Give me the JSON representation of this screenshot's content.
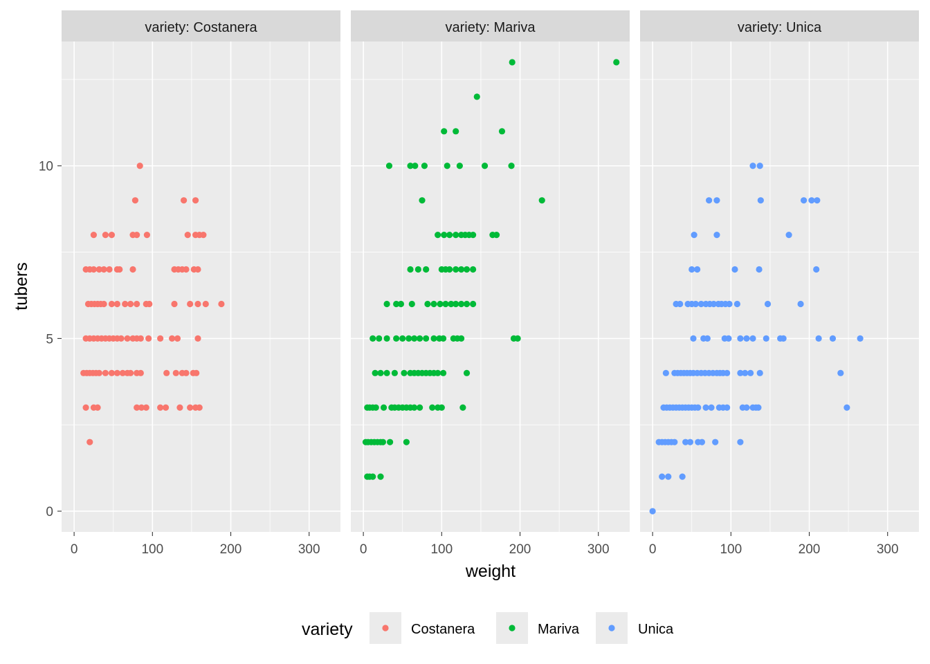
{
  "chart_data": {
    "type": "scatter",
    "facet_strip_prefix": "variety: ",
    "xlabel": "weight",
    "ylabel": "tubers",
    "xlim": [
      -16,
      340
    ],
    "ylim": [
      -0.6,
      13.6
    ],
    "x_ticks": [
      0,
      100,
      200,
      300
    ],
    "y_ticks": [
      0,
      5,
      10
    ],
    "grid": true,
    "legend": {
      "title": "variety",
      "position": "bottom"
    },
    "series": [
      {
        "name": "Costanera",
        "color": "#F8766D",
        "points": [
          [
            84,
            10
          ],
          [
            78,
            9
          ],
          [
            140,
            9
          ],
          [
            155,
            9
          ],
          [
            25,
            8
          ],
          [
            40,
            8
          ],
          [
            48,
            8
          ],
          [
            75,
            8
          ],
          [
            80,
            8
          ],
          [
            93,
            8
          ],
          [
            145,
            8
          ],
          [
            155,
            8
          ],
          [
            160,
            8
          ],
          [
            165,
            8
          ],
          [
            15,
            7
          ],
          [
            20,
            7
          ],
          [
            25,
            7
          ],
          [
            32,
            7
          ],
          [
            38,
            7
          ],
          [
            45,
            7
          ],
          [
            55,
            7
          ],
          [
            58,
            7
          ],
          [
            75,
            7
          ],
          [
            128,
            7
          ],
          [
            133,
            7
          ],
          [
            138,
            7
          ],
          [
            143,
            7
          ],
          [
            153,
            7
          ],
          [
            158,
            7
          ],
          [
            18,
            6
          ],
          [
            22,
            6
          ],
          [
            26,
            6
          ],
          [
            30,
            6
          ],
          [
            34,
            6
          ],
          [
            38,
            6
          ],
          [
            48,
            6
          ],
          [
            55,
            6
          ],
          [
            65,
            6
          ],
          [
            72,
            6
          ],
          [
            80,
            6
          ],
          [
            92,
            6
          ],
          [
            96,
            6
          ],
          [
            128,
            6
          ],
          [
            148,
            6
          ],
          [
            158,
            6
          ],
          [
            168,
            6
          ],
          [
            188,
            6
          ],
          [
            15,
            5
          ],
          [
            20,
            5
          ],
          [
            25,
            5
          ],
          [
            30,
            5
          ],
          [
            35,
            5
          ],
          [
            40,
            5
          ],
          [
            45,
            5
          ],
          [
            50,
            5
          ],
          [
            55,
            5
          ],
          [
            60,
            5
          ],
          [
            68,
            5
          ],
          [
            75,
            5
          ],
          [
            80,
            5
          ],
          [
            85,
            5
          ],
          [
            95,
            5
          ],
          [
            110,
            5
          ],
          [
            125,
            5
          ],
          [
            132,
            5
          ],
          [
            158,
            5
          ],
          [
            12,
            4
          ],
          [
            16,
            4
          ],
          [
            20,
            4
          ],
          [
            24,
            4
          ],
          [
            28,
            4
          ],
          [
            32,
            4
          ],
          [
            40,
            4
          ],
          [
            48,
            4
          ],
          [
            55,
            4
          ],
          [
            62,
            4
          ],
          [
            68,
            4
          ],
          [
            72,
            4
          ],
          [
            80,
            4
          ],
          [
            85,
            4
          ],
          [
            118,
            4
          ],
          [
            130,
            4
          ],
          [
            138,
            4
          ],
          [
            143,
            4
          ],
          [
            152,
            4
          ],
          [
            156,
            4
          ],
          [
            15,
            3
          ],
          [
            25,
            3
          ],
          [
            30,
            3
          ],
          [
            80,
            3
          ],
          [
            86,
            3
          ],
          [
            92,
            3
          ],
          [
            110,
            3
          ],
          [
            117,
            3
          ],
          [
            135,
            3
          ],
          [
            148,
            3
          ],
          [
            155,
            3
          ],
          [
            160,
            3
          ],
          [
            20,
            2
          ]
        ]
      },
      {
        "name": "Mariva",
        "color": "#00BA38",
        "points": [
          [
            190,
            13
          ],
          [
            323,
            13
          ],
          [
            145,
            12
          ],
          [
            103,
            11
          ],
          [
            118,
            11
          ],
          [
            177,
            11
          ],
          [
            33,
            10
          ],
          [
            60,
            10
          ],
          [
            66,
            10
          ],
          [
            78,
            10
          ],
          [
            107,
            10
          ],
          [
            123,
            10
          ],
          [
            155,
            10
          ],
          [
            189,
            10
          ],
          [
            75,
            9
          ],
          [
            228,
            9
          ],
          [
            95,
            8
          ],
          [
            103,
            8
          ],
          [
            110,
            8
          ],
          [
            118,
            8
          ],
          [
            125,
            8
          ],
          [
            130,
            8
          ],
          [
            135,
            8
          ],
          [
            140,
            8
          ],
          [
            165,
            8
          ],
          [
            170,
            8
          ],
          [
            60,
            7
          ],
          [
            70,
            7
          ],
          [
            80,
            7
          ],
          [
            100,
            7
          ],
          [
            105,
            7
          ],
          [
            110,
            7
          ],
          [
            118,
            7
          ],
          [
            125,
            7
          ],
          [
            132,
            7
          ],
          [
            140,
            7
          ],
          [
            30,
            6
          ],
          [
            42,
            6
          ],
          [
            48,
            6
          ],
          [
            62,
            6
          ],
          [
            82,
            6
          ],
          [
            90,
            6
          ],
          [
            98,
            6
          ],
          [
            105,
            6
          ],
          [
            112,
            6
          ],
          [
            118,
            6
          ],
          [
            125,
            6
          ],
          [
            132,
            6
          ],
          [
            140,
            6
          ],
          [
            12,
            5
          ],
          [
            20,
            5
          ],
          [
            30,
            5
          ],
          [
            42,
            5
          ],
          [
            50,
            5
          ],
          [
            58,
            5
          ],
          [
            65,
            5
          ],
          [
            72,
            5
          ],
          [
            80,
            5
          ],
          [
            90,
            5
          ],
          [
            97,
            5
          ],
          [
            102,
            5
          ],
          [
            115,
            5
          ],
          [
            120,
            5
          ],
          [
            125,
            5
          ],
          [
            192,
            5
          ],
          [
            197,
            5
          ],
          [
            15,
            4
          ],
          [
            22,
            4
          ],
          [
            30,
            4
          ],
          [
            40,
            4
          ],
          [
            52,
            4
          ],
          [
            60,
            4
          ],
          [
            65,
            4
          ],
          [
            70,
            4
          ],
          [
            75,
            4
          ],
          [
            80,
            4
          ],
          [
            85,
            4
          ],
          [
            90,
            4
          ],
          [
            95,
            4
          ],
          [
            102,
            4
          ],
          [
            132,
            4
          ],
          [
            5,
            3
          ],
          [
            8,
            3
          ],
          [
            12,
            3
          ],
          [
            16,
            3
          ],
          [
            26,
            3
          ],
          [
            36,
            3
          ],
          [
            40,
            3
          ],
          [
            45,
            3
          ],
          [
            50,
            3
          ],
          [
            55,
            3
          ],
          [
            60,
            3
          ],
          [
            65,
            3
          ],
          [
            72,
            3
          ],
          [
            88,
            3
          ],
          [
            95,
            3
          ],
          [
            100,
            3
          ],
          [
            127,
            3
          ],
          [
            3,
            2
          ],
          [
            6,
            2
          ],
          [
            10,
            2
          ],
          [
            14,
            2
          ],
          [
            18,
            2
          ],
          [
            22,
            2
          ],
          [
            25,
            2
          ],
          [
            34,
            2
          ],
          [
            55,
            2
          ],
          [
            5,
            1
          ],
          [
            8,
            1
          ],
          [
            12,
            1
          ],
          [
            22,
            1
          ]
        ]
      },
      {
        "name": "Unica",
        "color": "#619CFF",
        "points": [
          [
            128,
            10
          ],
          [
            137,
            10
          ],
          [
            72,
            9
          ],
          [
            82,
            9
          ],
          [
            138,
            9
          ],
          [
            193,
            9
          ],
          [
            203,
            9
          ],
          [
            210,
            9
          ],
          [
            53,
            8
          ],
          [
            82,
            8
          ],
          [
            174,
            8
          ],
          [
            50,
            7
          ],
          [
            57,
            7
          ],
          [
            105,
            7
          ],
          [
            136,
            7
          ],
          [
            209,
            7
          ],
          [
            30,
            6
          ],
          [
            35,
            6
          ],
          [
            45,
            6
          ],
          [
            50,
            6
          ],
          [
            55,
            6
          ],
          [
            62,
            6
          ],
          [
            68,
            6
          ],
          [
            73,
            6
          ],
          [
            78,
            6
          ],
          [
            84,
            6
          ],
          [
            88,
            6
          ],
          [
            93,
            6
          ],
          [
            98,
            6
          ],
          [
            108,
            6
          ],
          [
            147,
            6
          ],
          [
            189,
            6
          ],
          [
            52,
            5
          ],
          [
            65,
            5
          ],
          [
            70,
            5
          ],
          [
            92,
            5
          ],
          [
            97,
            5
          ],
          [
            112,
            5
          ],
          [
            120,
            5
          ],
          [
            128,
            5
          ],
          [
            145,
            5
          ],
          [
            163,
            5
          ],
          [
            167,
            5
          ],
          [
            212,
            5
          ],
          [
            230,
            5
          ],
          [
            265,
            5
          ],
          [
            17,
            4
          ],
          [
            28,
            4
          ],
          [
            32,
            4
          ],
          [
            36,
            4
          ],
          [
            40,
            4
          ],
          [
            44,
            4
          ],
          [
            48,
            4
          ],
          [
            52,
            4
          ],
          [
            57,
            4
          ],
          [
            62,
            4
          ],
          [
            67,
            4
          ],
          [
            72,
            4
          ],
          [
            77,
            4
          ],
          [
            82,
            4
          ],
          [
            86,
            4
          ],
          [
            90,
            4
          ],
          [
            95,
            4
          ],
          [
            112,
            4
          ],
          [
            118,
            4
          ],
          [
            125,
            4
          ],
          [
            137,
            4
          ],
          [
            240,
            4
          ],
          [
            14,
            3
          ],
          [
            18,
            3
          ],
          [
            22,
            3
          ],
          [
            26,
            3
          ],
          [
            30,
            3
          ],
          [
            34,
            3
          ],
          [
            38,
            3
          ],
          [
            42,
            3
          ],
          [
            46,
            3
          ],
          [
            50,
            3
          ],
          [
            54,
            3
          ],
          [
            58,
            3
          ],
          [
            68,
            3
          ],
          [
            75,
            3
          ],
          [
            85,
            3
          ],
          [
            90,
            3
          ],
          [
            95,
            3
          ],
          [
            115,
            3
          ],
          [
            120,
            3
          ],
          [
            128,
            3
          ],
          [
            132,
            3
          ],
          [
            135,
            3
          ],
          [
            248,
            3
          ],
          [
            8,
            2
          ],
          [
            12,
            2
          ],
          [
            16,
            2
          ],
          [
            20,
            2
          ],
          [
            24,
            2
          ],
          [
            28,
            2
          ],
          [
            42,
            2
          ],
          [
            48,
            2
          ],
          [
            58,
            2
          ],
          [
            63,
            2
          ],
          [
            80,
            2
          ],
          [
            112,
            2
          ],
          [
            12,
            1
          ],
          [
            20,
            1
          ],
          [
            38,
            1
          ],
          [
            0,
            0
          ]
        ]
      }
    ]
  }
}
